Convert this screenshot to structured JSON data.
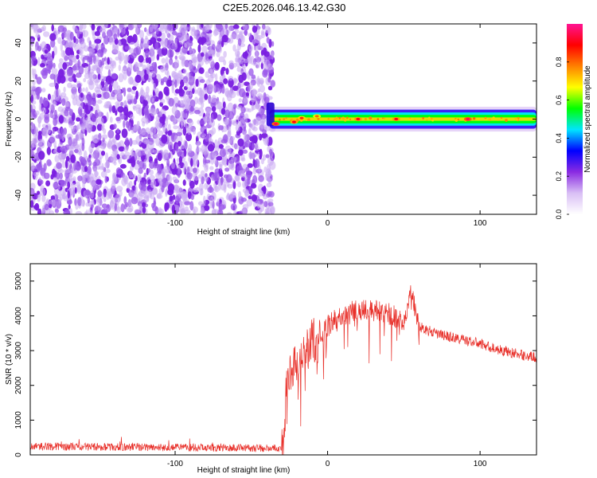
{
  "title": "C2E5.2026.046.13.42.G30",
  "chart_data": [
    {
      "type": "heatmap",
      "xlabel": "Height of straight line (km)",
      "ylabel": "Frequency (Hz)",
      "xlim": [
        -195,
        137
      ],
      "ylim": [
        -50,
        50
      ],
      "x_ticks": [
        -100,
        0,
        100
      ],
      "x_tick_labels": [
        "-100",
        "0",
        "100"
      ],
      "y_ticks": [
        -40,
        -20,
        0,
        20,
        40
      ],
      "y_tick_labels": [
        "-40",
        "-20",
        "0",
        "20",
        "40"
      ],
      "noise_region_x": [
        -195,
        -38
      ],
      "signal_band": {
        "x_start": -38,
        "x_end": 137,
        "center_freq": 0,
        "half_width": 2.5
      },
      "peaks": [
        {
          "x": -34,
          "freq": -2.5,
          "amp": 0.95
        },
        {
          "x": -22,
          "freq": -1.5,
          "amp": 0.9
        },
        {
          "x": -17,
          "freq": 0.5,
          "amp": 0.85
        },
        {
          "x": -7,
          "freq": 1.5,
          "amp": 0.8
        },
        {
          "x": 20,
          "freq": 0,
          "amp": 0.9
        },
        {
          "x": 45,
          "freq": 0,
          "amp": 0.9
        },
        {
          "x": 92,
          "freq": 0,
          "amp": 0.95
        }
      ],
      "colorbar": {
        "label": "Normalized spectral amplitude",
        "range": [
          0.0,
          1.0
        ],
        "ticks": [
          0.0,
          0.2,
          0.4,
          0.6,
          0.8
        ],
        "tick_labels": [
          "0.0",
          "0.2",
          "0.4",
          "0.6",
          "0.8"
        ],
        "colors": [
          "#ffffff",
          "#d9bff5",
          "#8a2be2",
          "#0000ff",
          "#00e5ff",
          "#00ff00",
          "#ffff00",
          "#ff8000",
          "#ff0000",
          "#ff1493"
        ]
      },
      "grid": false
    },
    {
      "type": "line",
      "xlabel": "Height of straight line (km)",
      "ylabel": "SNR (10 * v/v)",
      "xlim": [
        -195,
        137
      ],
      "ylim": [
        0,
        5500
      ],
      "x_ticks": [
        -100,
        0,
        100
      ],
      "x_tick_labels": [
        "-100",
        "0",
        "100"
      ],
      "y_ticks": [
        0,
        1000,
        2000,
        3000,
        4000,
        5000
      ],
      "y_tick_labels": [
        "0",
        "1000",
        "2000",
        "3000",
        "4000",
        "5000"
      ],
      "color": "#e8302a",
      "series": [
        {
          "name": "SNR",
          "x": [
            -195,
            -170,
            -150,
            -120,
            -90,
            -60,
            -40,
            -29,
            -27,
            -24,
            -20,
            -16,
            -12,
            -9,
            -7,
            -4,
            0,
            5,
            10,
            15,
            20,
            30,
            40,
            50,
            55,
            60,
            70,
            80,
            90,
            100,
            110,
            120,
            130,
            137
          ],
          "values": [
            250,
            240,
            230,
            220,
            210,
            200,
            190,
            200,
            1900,
            2400,
            2700,
            2800,
            3100,
            3400,
            2900,
            3500,
            3700,
            3900,
            4000,
            4100,
            4200,
            4150,
            4050,
            3900,
            4700,
            3700,
            3500,
            3400,
            3300,
            3200,
            3050,
            2950,
            2850,
            2800
          ]
        }
      ],
      "grid": false
    }
  ]
}
